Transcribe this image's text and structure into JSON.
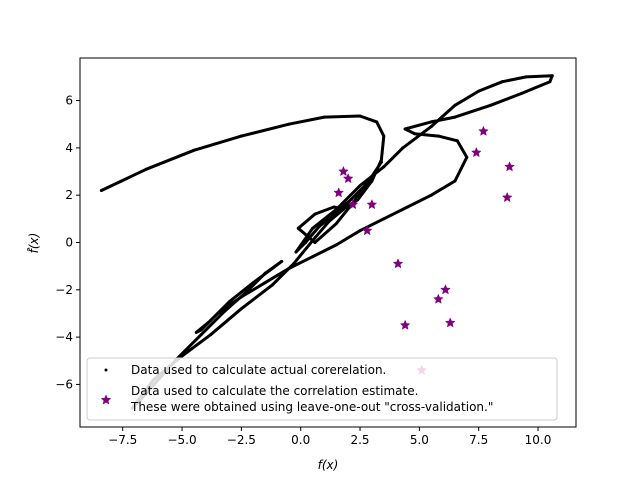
{
  "chart_data": {
    "type": "scatter",
    "title": "",
    "xlabel": "f(x)",
    "ylabel": "f̂(x)",
    "xlim": [
      -9.3,
      11.6
    ],
    "ylim": [
      -7.8,
      7.8
    ],
    "xticks": [
      -7.5,
      -5.0,
      -2.5,
      0.0,
      2.5,
      5.0,
      7.5,
      10.0
    ],
    "xtick_labels": [
      "−7.5",
      "−5.0",
      "−2.5",
      "0.0",
      "2.5",
      "5.0",
      "7.5",
      "10.0"
    ],
    "yticks": [
      -6,
      -4,
      -2,
      0,
      2,
      4,
      6
    ],
    "ytick_labels": [
      "−6",
      "−4",
      "−2",
      "0",
      "2",
      "4",
      "6"
    ],
    "legend_position": "lower-center",
    "series": [
      {
        "name": "Data used to calculate actual corerelation.",
        "marker": "dot",
        "color": "#000000",
        "points": [
          [
            -8.4,
            2.2
          ],
          [
            -6.5,
            3.1
          ],
          [
            -4.5,
            3.9
          ],
          [
            -2.5,
            4.5
          ],
          [
            -0.5,
            5.0
          ],
          [
            1.0,
            5.3
          ],
          [
            2.5,
            5.35
          ],
          [
            3.2,
            5.1
          ],
          [
            3.5,
            4.5
          ],
          [
            3.4,
            3.5
          ],
          [
            3.0,
            2.6
          ],
          [
            2.4,
            1.8
          ],
          [
            1.6,
            1.3
          ],
          [
            0.8,
            0.7
          ],
          [
            0.2,
            0.0
          ],
          [
            -0.2,
            -0.4
          ],
          [
            0.5,
            0.6
          ],
          [
            1.5,
            1.4
          ],
          [
            2.5,
            2.4
          ],
          [
            3.5,
            3.2
          ],
          [
            4.3,
            4.0
          ],
          [
            5.5,
            4.9
          ],
          [
            6.5,
            5.8
          ],
          [
            7.5,
            6.4
          ],
          [
            8.5,
            6.8
          ],
          [
            9.5,
            7.0
          ],
          [
            10.6,
            7.05
          ],
          [
            10.5,
            6.8
          ],
          [
            9.3,
            6.3
          ],
          [
            8.0,
            5.8
          ],
          [
            6.5,
            5.3
          ],
          [
            5.5,
            5.1
          ],
          [
            4.4,
            4.8
          ],
          [
            4.8,
            4.6
          ],
          [
            5.8,
            4.5
          ],
          [
            6.6,
            4.3
          ],
          [
            7.0,
            3.6
          ],
          [
            6.5,
            2.6
          ],
          [
            5.5,
            2.0
          ],
          [
            4.5,
            1.5
          ],
          [
            3.5,
            1.0
          ],
          [
            2.5,
            0.5
          ],
          [
            1.5,
            -0.1
          ],
          [
            0.5,
            -0.6
          ],
          [
            -0.5,
            -1.1
          ],
          [
            -1.5,
            -1.7
          ],
          [
            -2.5,
            -2.3
          ],
          [
            -3.5,
            -3.0
          ],
          [
            -4.2,
            -3.7
          ],
          [
            -4.4,
            -3.8
          ],
          [
            -3.8,
            -3.3
          ],
          [
            -3.0,
            -2.5
          ],
          [
            -2.0,
            -1.7
          ],
          [
            -1.2,
            -1.1
          ],
          [
            -0.8,
            -0.8
          ],
          [
            -1.5,
            -1.3
          ],
          [
            -2.3,
            -2.1
          ],
          [
            -3.2,
            -2.9
          ],
          [
            -4.2,
            -3.9
          ],
          [
            -5.2,
            -4.9
          ],
          [
            -6.0,
            -5.8
          ],
          [
            -6.8,
            -6.7
          ],
          [
            -7.1,
            -7.0
          ],
          [
            -6.2,
            -5.8
          ],
          [
            -5.0,
            -4.8
          ],
          [
            -3.8,
            -3.9
          ],
          [
            -2.5,
            -2.8
          ],
          [
            -1.2,
            -1.8
          ],
          [
            -0.3,
            -0.9
          ],
          [
            0.6,
            0.2
          ],
          [
            1.2,
            0.9
          ],
          [
            1.8,
            1.4
          ],
          [
            1.4,
            1.5
          ],
          [
            0.6,
            1.2
          ],
          [
            -0.1,
            0.6
          ],
          [
            0.6,
            0.0
          ],
          [
            1.5,
            0.8
          ],
          [
            2.3,
            1.8
          ],
          [
            3.0,
            2.8
          ],
          [
            3.4,
            3.4
          ],
          [
            2.8,
            2.5
          ],
          [
            2.0,
            1.7
          ],
          [
            1.3,
            1.2
          ]
        ]
      },
      {
        "name": "Data used to calculate the correlation estimate.\nThese were obtained using leave-one-out \"cross-validation.\"",
        "legend_lines": [
          "Data used to calculate the correlation estimate.",
          "These were obtained using leave-one-out \"cross-validation.\""
        ],
        "marker": "star",
        "color": "#800080",
        "points": [
          [
            1.6,
            2.1
          ],
          [
            1.8,
            3.0
          ],
          [
            2.0,
            2.7
          ],
          [
            2.2,
            1.6
          ],
          [
            2.8,
            0.5
          ],
          [
            3.0,
            1.6
          ],
          [
            4.1,
            -0.9
          ],
          [
            4.4,
            -3.5
          ],
          [
            5.8,
            -2.4
          ],
          [
            6.1,
            -2.0
          ],
          [
            6.3,
            -3.4
          ],
          [
            7.4,
            3.8
          ],
          [
            7.7,
            4.7
          ],
          [
            8.8,
            3.2
          ],
          [
            8.7,
            1.9
          ],
          [
            5.1,
            -5.4
          ]
        ]
      }
    ]
  }
}
